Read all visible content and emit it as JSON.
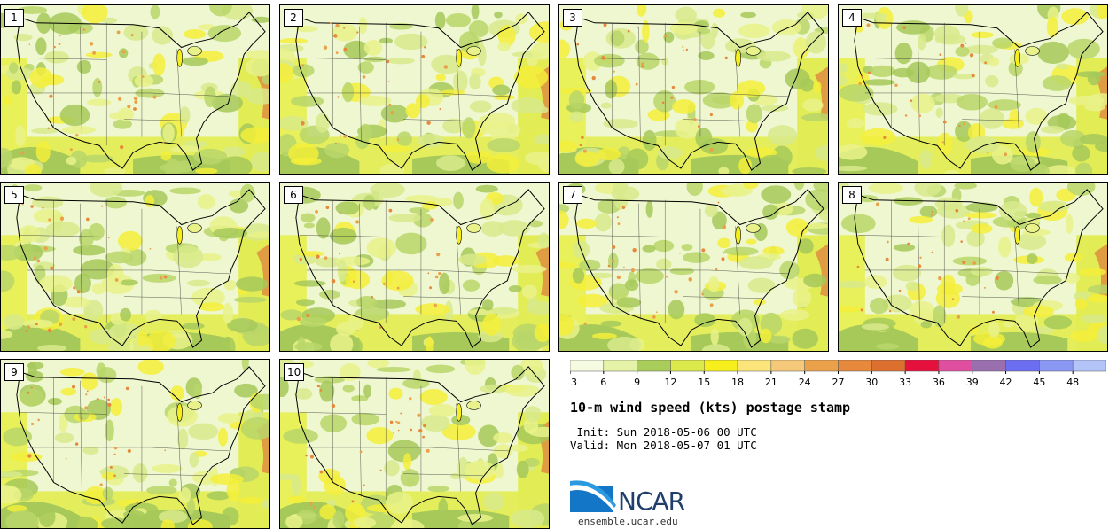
{
  "panels": [
    {
      "label": "1"
    },
    {
      "label": "2"
    },
    {
      "label": "3"
    },
    {
      "label": "4"
    },
    {
      "label": "5"
    },
    {
      "label": "6"
    },
    {
      "label": "7"
    },
    {
      "label": "8"
    },
    {
      "label": "9"
    },
    {
      "label": "10"
    }
  ],
  "colorbar": {
    "ticks": [
      "3",
      "6",
      "9",
      "12",
      "15",
      "18",
      "21",
      "24",
      "27",
      "30",
      "33",
      "36",
      "39",
      "42",
      "45",
      "48"
    ],
    "colors": [
      "#f4fbe0",
      "#e4f3a8",
      "#a9cd5a",
      "#dbe94a",
      "#f6ef1c",
      "#fbe47a",
      "#f6c97a",
      "#eba04a",
      "#e6893c",
      "#dd6f2e",
      "#e5103c",
      "#e04ea0",
      "#9a6fae",
      "#6b6ef0",
      "#8a98f4",
      "#b3c5f8"
    ]
  },
  "title": "10-m wind speed (kts) postage stamp",
  "init_line": " Init: Sun 2018-05-06 00 UTC",
  "valid_line": "Valid: Mon 2018-05-07 01 UTC",
  "logo": {
    "text": "NCAR"
  },
  "site": "ensemble.ucar.edu"
}
